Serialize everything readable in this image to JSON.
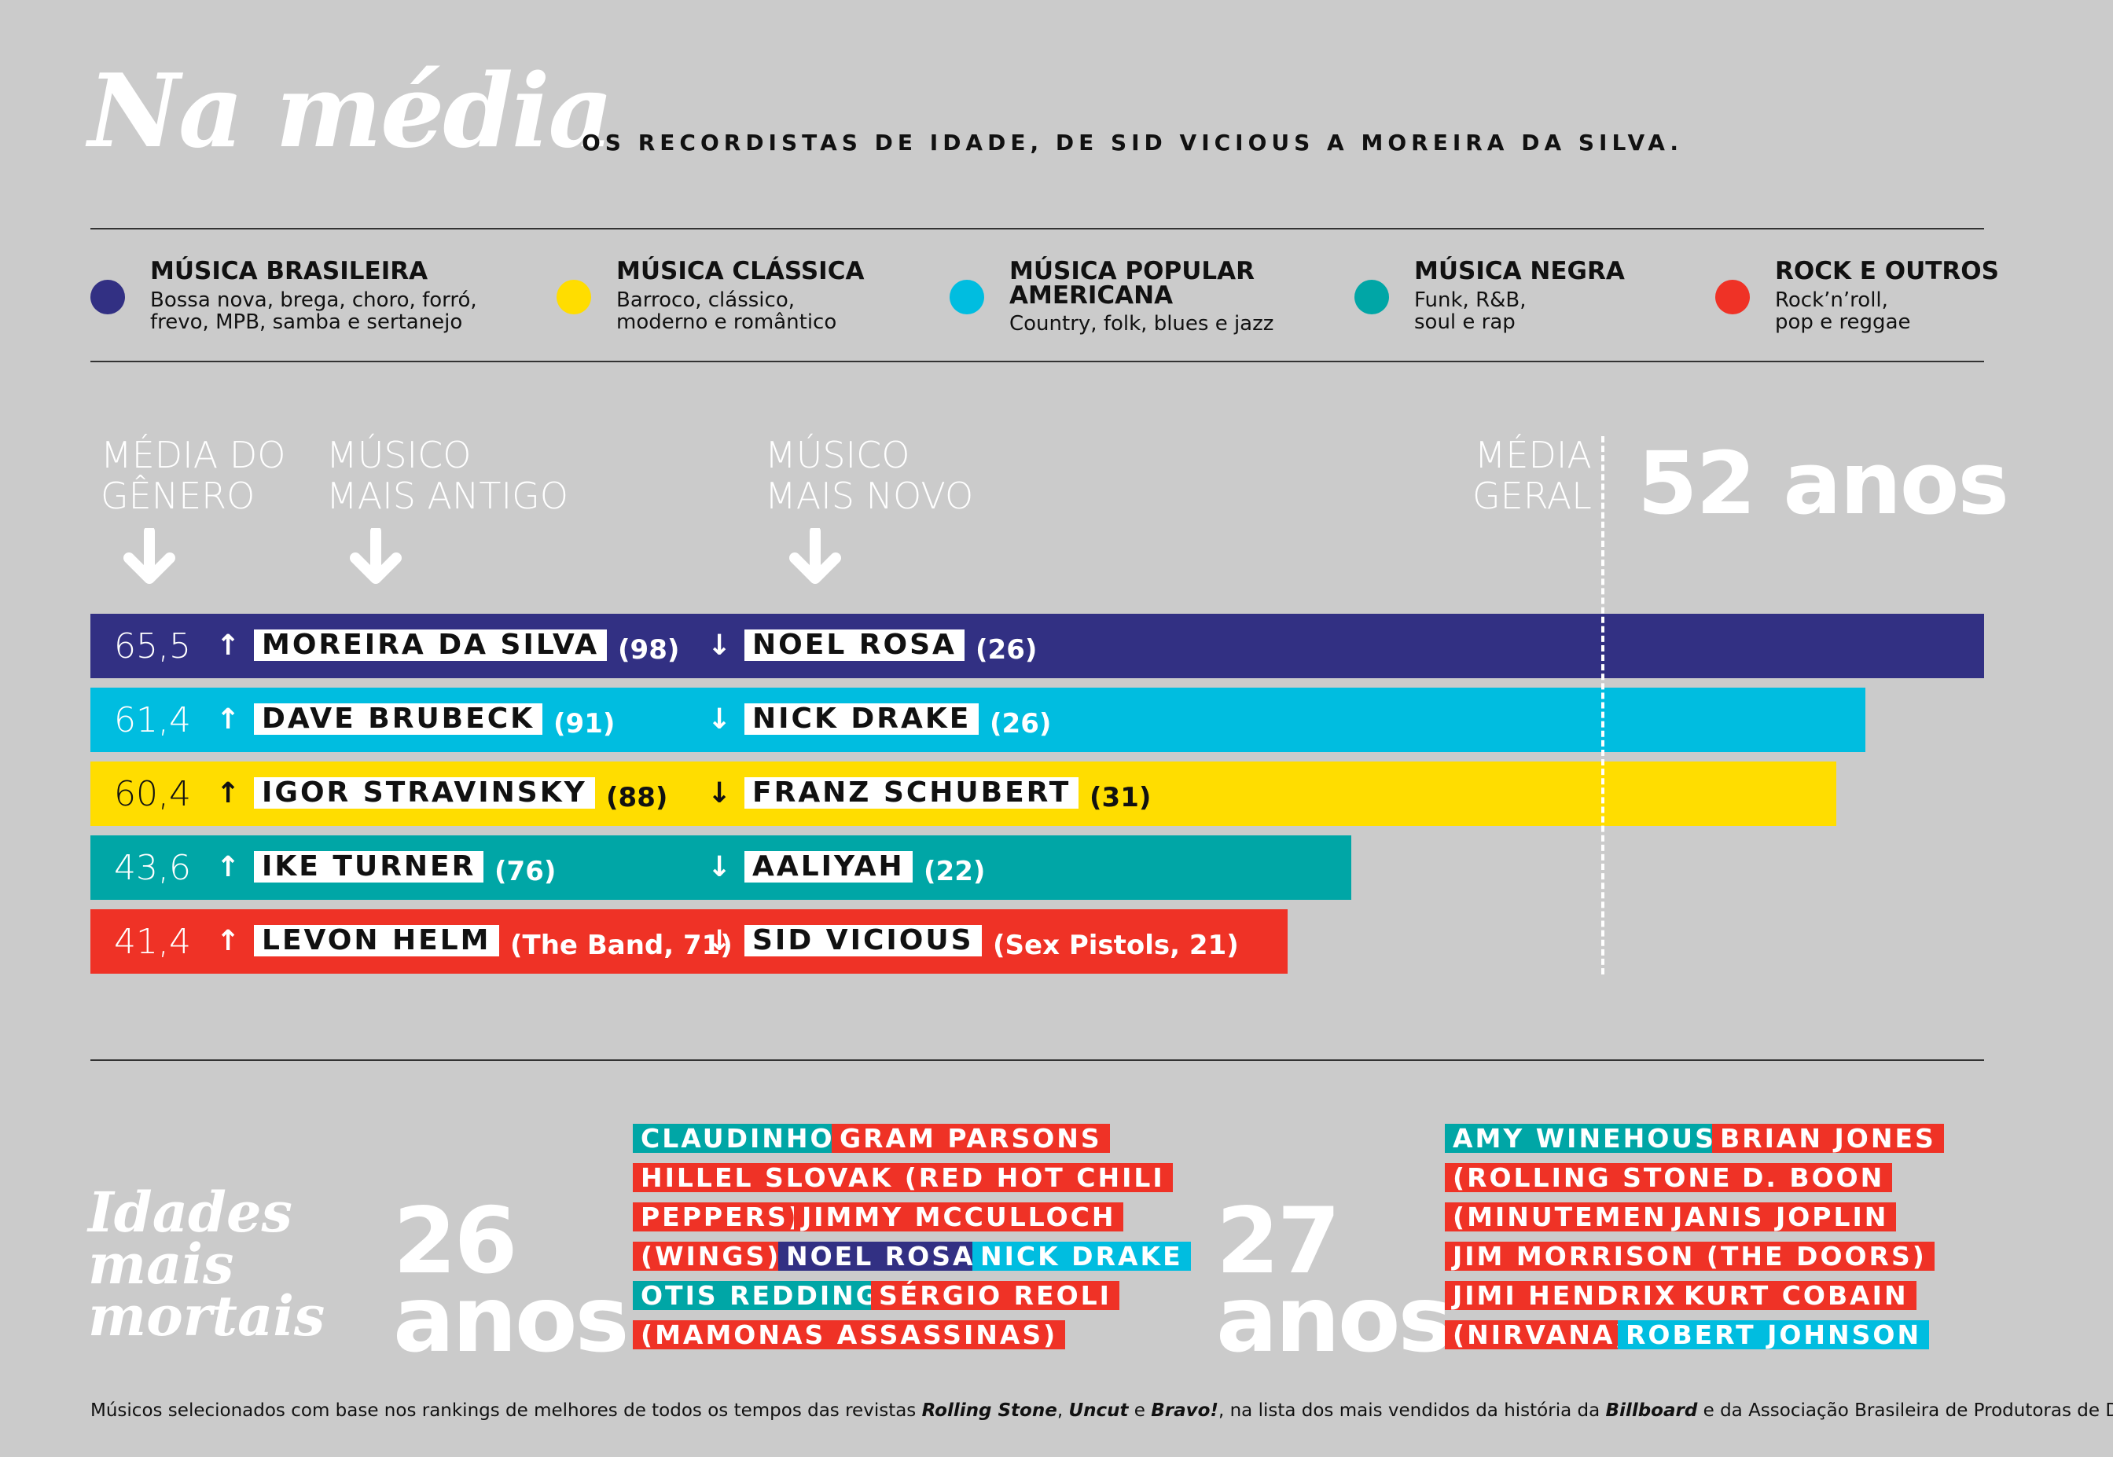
{
  "header": {
    "title": "Na média",
    "subtitle": "OS RECORDISTAS DE IDADE, DE SID VICIOUS A MOREIRA DA SILVA."
  },
  "colors": {
    "brasileira": "#323083",
    "classica": "#ffdd00",
    "americana": "#00bde0",
    "negra": "#00a6a6",
    "rock": "#ef3226"
  },
  "legend": [
    {
      "title": "MÚSICA BRASILEIRA",
      "desc": "Bossa nova, brega, choro, forró,\nfrevo, MPB, samba e sertanejo",
      "color": "#323083"
    },
    {
      "title": "MÚSICA CLÁSSICA",
      "desc": "Barroco, clássico,\nmoderno e romântico",
      "color": "#ffdd00"
    },
    {
      "title": "MÚSICA POPULAR\nAMERICANA",
      "desc": "Country, folk, blues e jazz",
      "color": "#00bde0"
    },
    {
      "title": "MÚSICA NEGRA",
      "desc": "Funk, R&B,\nsoul e rap",
      "color": "#00a6a6"
    },
    {
      "title": "ROCK E OUTROS",
      "desc": "Rock’n’roll,\npop e reggae",
      "color": "#ef3226"
    }
  ],
  "columns": {
    "avg": "MÉDIA DO\nGÊNERO",
    "oldest": "MÚSICO\nMAIS ANTIGO",
    "youngest": "MÚSICO\nMAIS NOVO",
    "overall": "MÉDIA\nGERAL",
    "overall_value": "52 anos"
  },
  "chart_data": {
    "type": "bar",
    "orientation": "horizontal",
    "title": "Na média",
    "overall_average": 52,
    "xlim": [
      0,
      65.5
    ],
    "categories": [
      "Música brasileira",
      "Música popular americana",
      "Música clássica",
      "Música negra",
      "Rock e outros"
    ],
    "values": [
      65.5,
      61.4,
      60.4,
      43.6,
      41.4
    ],
    "rows": [
      {
        "avg": "65,5",
        "value": 65.5,
        "color": "#323083",
        "avg_color": "#ffffff",
        "oldest": "MOREIRA DA SILVA",
        "oldest_age": "(98)",
        "youngest": "NOEL ROSA",
        "youngest_age": "(26)",
        "text_color": "#ffffff"
      },
      {
        "avg": "61,4",
        "value": 61.4,
        "color": "#00bde0",
        "avg_color": "#ffffff",
        "oldest": "DAVE BRUBECK",
        "oldest_age": "(91)",
        "youngest": "NICK DRAKE",
        "youngest_age": "(26)",
        "text_color": "#ffffff"
      },
      {
        "avg": "60,4",
        "value": 60.4,
        "color": "#ffdd00",
        "avg_color": "#111111",
        "oldest": "IGOR STRAVINSKY",
        "oldest_age": "(88)",
        "youngest": "FRANZ SCHUBERT",
        "youngest_age": "(31)",
        "text_color": "#111111"
      },
      {
        "avg": "43,6",
        "value": 43.6,
        "color": "#00a6a6",
        "avg_color": "#ffffff",
        "oldest": "IKE TURNER",
        "oldest_age": "(76)",
        "youngest": "AALIYAH",
        "youngest_age": "(22)",
        "text_color": "#ffffff"
      },
      {
        "avg": "41,4",
        "value": 41.4,
        "color": "#ef3226",
        "avg_color": "#ffffff",
        "oldest": "LEVON HELM",
        "oldest_age": "(The Band, 71)",
        "youngest": "SID VICIOUS",
        "youngest_age": "(Sex Pistols, 21)",
        "text_color": "#ffffff"
      }
    ]
  },
  "deadliest": {
    "title": "Idades\nmais\nmortais",
    "age26": "26\nanos",
    "age27": "27\nanos",
    "tags26": [
      {
        "text": "CLAUDINHO",
        "color": "#00a6a6"
      },
      {
        "text": "GRAM PARSONS",
        "color": "#ef3226"
      },
      {
        "text": "HILLEL SLOVAK (RED HOT CHILI",
        "color": "#ef3226"
      },
      {
        "text": "PEPPERS)",
        "color": "#ef3226"
      },
      {
        "text": "JIMMY MCCULLOCH",
        "color": "#ef3226"
      },
      {
        "text": "(WINGS)",
        "color": "#ef3226"
      },
      {
        "text": "NOEL ROSA",
        "color": "#323083"
      },
      {
        "text": "NICK DRAKE",
        "color": "#00bde0"
      },
      {
        "text": "OTIS REDDING",
        "color": "#00a6a6"
      },
      {
        "text": "SÉRGIO REOLI",
        "color": "#ef3226"
      },
      {
        "text": "(MAMONAS ASSASSINAS)",
        "color": "#ef3226"
      }
    ],
    "tags27": [
      {
        "text": "AMY WINEHOUSE",
        "color": "#00a6a6"
      },
      {
        "text": "BRIAN JONES",
        "color": "#ef3226"
      },
      {
        "text": "(ROLLING STONES)",
        "color": "#ef3226"
      },
      {
        "text": "D. BOON",
        "color": "#ef3226"
      },
      {
        "text": "(MINUTEMEN)",
        "color": "#ef3226"
      },
      {
        "text": "JANIS JOPLIN",
        "color": "#ef3226"
      },
      {
        "text": "JIM MORRISON (THE DOORS)",
        "color": "#ef3226"
      },
      {
        "text": "JIMI HENDRIX",
        "color": "#ef3226"
      },
      {
        "text": "KURT COBAIN",
        "color": "#ef3226"
      },
      {
        "text": "(NIRVANA)",
        "color": "#ef3226"
      },
      {
        "text": "ROBERT JOHNSON",
        "color": "#00bde0"
      }
    ]
  },
  "footer": {
    "p1": "Músicos selecionados com base nos rankings de melhores de todos os tempos das revistas ",
    "m1": "Rolling Stone",
    "p2": ", ",
    "m2": "Uncut",
    "p3": " e ",
    "m3": "Bravo!",
    "p4": ", na lista dos mais vendidos da história da ",
    "m4": "Billboard",
    "p5": " e da Associação Brasileira de Produtoras de Disco."
  }
}
